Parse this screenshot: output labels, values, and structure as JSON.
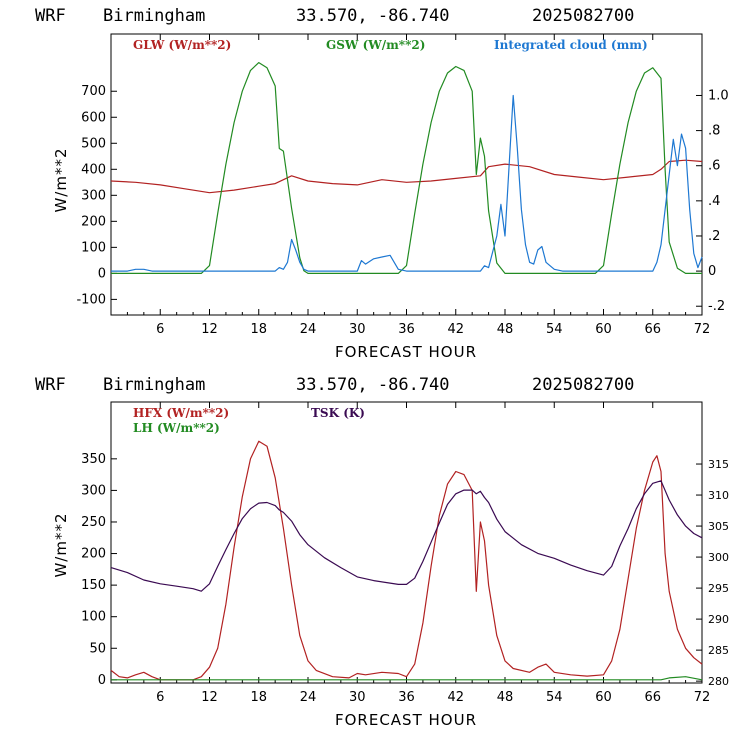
{
  "colors": {
    "glw": "#b22222",
    "gsw": "#228b22",
    "cloud": "#1e78d2",
    "hfx": "#b22222",
    "lh": "#228b22",
    "tsk": "#3a0a52"
  },
  "chart_data": [
    {
      "type": "line",
      "header": {
        "model": "WRF",
        "location": "Birmingham",
        "coords": "33.570, -86.740",
        "datetime": "2025082700"
      },
      "xlabel": "FORECAST HOUR",
      "ylabel": "W/m**2",
      "xlim": [
        0,
        72
      ],
      "ylim": [
        -160,
        920
      ],
      "xticks": [
        "6",
        "12",
        "18",
        "24",
        "30",
        "36",
        "42",
        "48",
        "54",
        "60",
        "66",
        "72"
      ],
      "yticks": [
        "-100",
        "0",
        "100",
        "200",
        "300",
        "400",
        "500",
        "600",
        "700"
      ],
      "y2lim": [
        -0.25,
        1.35
      ],
      "y2ticks": [
        "-.2",
        "0",
        ".2",
        ".4",
        ".6",
        ".8",
        "1.0"
      ],
      "legend": [
        "GLW (W/m**2)",
        "GSW (W/m**2)",
        "Integrated cloud (mm)"
      ],
      "series": [
        {
          "name": "GLW (W/m**2)",
          "axis": "left",
          "x": [
            0,
            3,
            6,
            9,
            12,
            15,
            18,
            20,
            21,
            22,
            24,
            27,
            30,
            33,
            36,
            39,
            42,
            45,
            46,
            48,
            51,
            54,
            57,
            60,
            63,
            66,
            67,
            68,
            70,
            72
          ],
          "y": [
            355,
            350,
            340,
            325,
            310,
            320,
            335,
            345,
            360,
            375,
            355,
            345,
            340,
            360,
            350,
            355,
            365,
            375,
            410,
            420,
            410,
            380,
            370,
            360,
            370,
            380,
            400,
            430,
            435,
            430
          ]
        },
        {
          "name": "GSW (W/m**2)",
          "axis": "left",
          "x": [
            0,
            11,
            12,
            13,
            14,
            15,
            16,
            17,
            18,
            19,
            20,
            20.5,
            21,
            22,
            23,
            23.5,
            24,
            35,
            36,
            37,
            38,
            39,
            40,
            41,
            42,
            43,
            44,
            44.5,
            45,
            45.5,
            46,
            47,
            48,
            59,
            60,
            61,
            62,
            63,
            64,
            65,
            66,
            67,
            67.5,
            68,
            69,
            70,
            72
          ],
          "y": [
            0,
            0,
            30,
            230,
            420,
            580,
            700,
            780,
            810,
            790,
            720,
            480,
            470,
            250,
            60,
            10,
            0,
            0,
            30,
            230,
            420,
            580,
            700,
            770,
            795,
            780,
            700,
            380,
            520,
            450,
            240,
            40,
            0,
            0,
            30,
            230,
            420,
            580,
            700,
            770,
            790,
            750,
            400,
            120,
            20,
            0,
            0
          ]
        },
        {
          "name": "Integrated cloud (mm)",
          "axis": "right",
          "x": [
            0,
            2,
            3,
            4,
            5,
            20,
            20.5,
            21,
            21.5,
            22,
            22.5,
            23,
            23.5,
            24,
            30,
            30.5,
            31,
            32,
            33,
            34,
            34.5,
            35,
            36,
            45,
            45.5,
            46,
            47,
            47.5,
            48,
            48.5,
            49,
            49.5,
            50,
            50.5,
            51,
            51.5,
            52,
            52.5,
            53,
            54,
            55,
            66,
            66.5,
            67,
            67.5,
            68,
            68.5,
            69,
            69.5,
            70,
            70.5,
            71,
            71.5,
            72
          ],
          "y": [
            0,
            0,
            0.01,
            0.01,
            0,
            0,
            0.02,
            0.01,
            0.05,
            0.18,
            0.12,
            0.05,
            0.01,
            0,
            0,
            0.06,
            0.04,
            0.07,
            0.08,
            0.09,
            0.05,
            0.01,
            0,
            0,
            0.03,
            0.02,
            0.2,
            0.38,
            0.2,
            0.6,
            1.0,
            0.7,
            0.35,
            0.15,
            0.05,
            0.04,
            0.12,
            0.14,
            0.05,
            0.01,
            0,
            0,
            0.05,
            0.15,
            0.35,
            0.55,
            0.75,
            0.6,
            0.78,
            0.7,
            0.35,
            0.1,
            0.02,
            0.08
          ]
        }
      ]
    },
    {
      "type": "line",
      "header": {
        "model": "WRF",
        "location": "Birmingham",
        "coords": "33.570, -86.740",
        "datetime": "2025082700"
      },
      "xlabel": "FORECAST HOUR",
      "ylabel": "W/m**2",
      "xlim": [
        0,
        72
      ],
      "ylim": [
        -5,
        440
      ],
      "xticks": [
        "6",
        "12",
        "18",
        "24",
        "30",
        "36",
        "42",
        "48",
        "54",
        "60",
        "66",
        "72"
      ],
      "yticks": [
        "0",
        "50",
        "100",
        "150",
        "200",
        "250",
        "300",
        "350"
      ],
      "y2lim": [
        279.7,
        325
      ],
      "y2ticks": [
        "280",
        "285",
        "290",
        "295",
        "300",
        "305",
        "310",
        "315"
      ],
      "legend": [
        "HFX (W/m**2)",
        "LH (W/m**2)",
        "TSK (K)"
      ],
      "series": [
        {
          "name": "HFX (W/m**2)",
          "axis": "left",
          "x": [
            0,
            1,
            2,
            3,
            4,
            5,
            6,
            7,
            10,
            11,
            12,
            13,
            14,
            15,
            16,
            17,
            18,
            19,
            20,
            21,
            22,
            23,
            24,
            25,
            27,
            29,
            30,
            31,
            33,
            35,
            36,
            37,
            38,
            39,
            40,
            41,
            42,
            43,
            44,
            44.5,
            45,
            45.5,
            46,
            47,
            48,
            49,
            51,
            52,
            53,
            54,
            56,
            58,
            60,
            61,
            62,
            63,
            64,
            65,
            66,
            66.5,
            67,
            67.5,
            68,
            69,
            70,
            71,
            72
          ],
          "y": [
            15,
            5,
            3,
            8,
            12,
            5,
            0,
            0,
            0,
            5,
            20,
            50,
            120,
            210,
            290,
            350,
            378,
            370,
            320,
            240,
            150,
            70,
            30,
            15,
            5,
            3,
            10,
            8,
            12,
            10,
            5,
            25,
            90,
            180,
            260,
            310,
            330,
            325,
            300,
            140,
            250,
            220,
            150,
            70,
            30,
            18,
            12,
            20,
            25,
            12,
            8,
            6,
            8,
            30,
            80,
            160,
            240,
            300,
            345,
            355,
            330,
            200,
            140,
            80,
            50,
            35,
            25
          ]
        },
        {
          "name": "LH (W/m**2)",
          "axis": "left",
          "x": [
            0,
            12,
            24,
            36,
            48,
            60,
            67,
            68,
            70,
            72
          ],
          "y": [
            0,
            0,
            0,
            0,
            0,
            0,
            0,
            3,
            5,
            0
          ]
        },
        {
          "name": "TSK (K)",
          "axis": "right",
          "x": [
            0,
            2,
            4,
            6,
            8,
            10,
            11,
            12,
            13,
            14,
            15,
            16,
            17,
            18,
            19,
            20,
            20.5,
            21,
            22,
            23,
            24,
            26,
            28,
            30,
            32,
            34,
            35,
            36,
            37,
            38,
            39,
            40,
            41,
            42,
            43,
            44,
            44.5,
            45,
            45.5,
            46,
            47,
            48,
            50,
            52,
            54,
            56,
            58,
            60,
            61,
            62,
            63,
            64,
            65,
            66,
            67,
            68,
            69,
            70,
            71,
            72
          ],
          "y": [
            298.3,
            297.5,
            296.3,
            295.7,
            295.3,
            294.9,
            294.5,
            295.7,
            298.5,
            301.2,
            303.8,
            306.2,
            307.8,
            308.7,
            308.8,
            308.3,
            307.6,
            307.2,
            305.8,
            303.6,
            302.0,
            299.9,
            298.3,
            296.8,
            296.2,
            295.8,
            295.6,
            295.6,
            296.6,
            299.3,
            302.4,
            305.5,
            308.5,
            310.2,
            310.8,
            310.8,
            310.2,
            310.6,
            309.6,
            308.8,
            306.1,
            304.1,
            302.0,
            300.6,
            299.8,
            298.7,
            297.8,
            297.1,
            298.5,
            301.8,
            304.6,
            307.8,
            310.2,
            311.9,
            312.3,
            309.2,
            306.8,
            305.0,
            303.8,
            303.1
          ]
        }
      ]
    }
  ]
}
